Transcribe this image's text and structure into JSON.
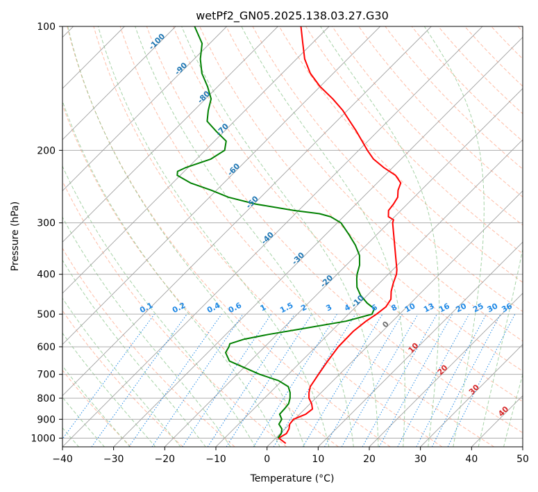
{
  "chart_data": {
    "type": "line",
    "title": "wetPf2_GN05.2025.138.03.27.G30",
    "xlabel": "Temperature (°C)",
    "ylabel": "Pressure (hPa)",
    "xlim": [
      -40,
      50
    ],
    "ylim": [
      1050,
      100
    ],
    "y_scale": "log",
    "skew_deg": 45,
    "x_ticks": [
      "−40",
      "−30",
      "−20",
      "−10",
      "0",
      "10",
      "20",
      "30",
      "40",
      "50"
    ],
    "y_ticks": [
      "100",
      "200",
      "300",
      "400",
      "500",
      "600",
      "700",
      "800",
      "900",
      "1000"
    ],
    "grid": true,
    "colors": {
      "temperature": "#ff0000",
      "dewpoint": "#008000",
      "dry_adiabat": "#ff9f7f",
      "moist_adiabat": "#7fbf7f",
      "mixing_ratio": "#1e88e5",
      "isotherm": "#a0a0a0",
      "dry_label": "#d62728",
      "moist_label": "#1f77b4",
      "mixing_label": "#1e88e5"
    },
    "series": [
      {
        "key": "temperature",
        "color": "#ff0000",
        "points": [
          [
            1030,
            3.0
          ],
          [
            1000,
            0.6
          ],
          [
            975,
            1.2
          ],
          [
            950,
            0.8
          ],
          [
            925,
            0.0
          ],
          [
            900,
            -0.2
          ],
          [
            875,
            1.2
          ],
          [
            850,
            1.5
          ],
          [
            825,
            0.3
          ],
          [
            800,
            -1.3
          ],
          [
            775,
            -2.4
          ],
          [
            750,
            -3.3
          ],
          [
            700,
            -4.1
          ],
          [
            650,
            -4.9
          ],
          [
            600,
            -5.6
          ],
          [
            550,
            -5.7
          ],
          [
            520,
            -5.2
          ],
          [
            500,
            -4.5
          ],
          [
            480,
            -4.1
          ],
          [
            460,
            -4.6
          ],
          [
            440,
            -6.1
          ],
          [
            420,
            -7.3
          ],
          [
            400,
            -8.4
          ],
          [
            390,
            -9.2
          ],
          [
            300,
            -19.2
          ],
          [
            295,
            -19.6
          ],
          [
            290,
            -21.2
          ],
          [
            280,
            -22.4
          ],
          [
            270,
            -22.7
          ],
          [
            260,
            -23.2
          ],
          [
            250,
            -24.5
          ],
          [
            240,
            -25.4
          ],
          [
            230,
            -27.9
          ],
          [
            220,
            -31.8
          ],
          [
            210,
            -35.4
          ],
          [
            200,
            -38.3
          ],
          [
            180,
            -44.1
          ],
          [
            160,
            -50.9
          ],
          [
            150,
            -55.1
          ],
          [
            140,
            -60.0
          ],
          [
            130,
            -64.5
          ],
          [
            120,
            -68.4
          ],
          [
            110,
            -71.8
          ],
          [
            100,
            -75.5
          ]
        ]
      },
      {
        "key": "dewpoint",
        "color": "#008000",
        "points": [
          [
            1000,
            0.4
          ],
          [
            975,
            0.2
          ],
          [
            950,
            -0.6
          ],
          [
            925,
            -2.1
          ],
          [
            900,
            -2.5
          ],
          [
            875,
            -3.9
          ],
          [
            850,
            -4.0
          ],
          [
            825,
            -4.2
          ],
          [
            800,
            -5.0
          ],
          [
            775,
            -6.1
          ],
          [
            750,
            -7.6
          ],
          [
            725,
            -10.7
          ],
          [
            700,
            -15.6
          ],
          [
            650,
            -24.1
          ],
          [
            620,
            -26.5
          ],
          [
            600,
            -27.0
          ],
          [
            590,
            -27.4
          ],
          [
            575,
            -25.5
          ],
          [
            560,
            -21.7
          ],
          [
            540,
            -15.4
          ],
          [
            520,
            -9.1
          ],
          [
            500,
            -5.4
          ],
          [
            485,
            -6.0
          ],
          [
            470,
            -8.5
          ],
          [
            450,
            -11.3
          ],
          [
            430,
            -13.6
          ],
          [
            410,
            -15.3
          ],
          [
            400,
            -16.1
          ],
          [
            380,
            -17.4
          ],
          [
            360,
            -19.3
          ],
          [
            340,
            -22.1
          ],
          [
            320,
            -25.5
          ],
          [
            300,
            -29.3
          ],
          [
            290,
            -32.5
          ],
          [
            285,
            -35.3
          ],
          [
            280,
            -40.9
          ],
          [
            270,
            -49.7
          ],
          [
            260,
            -56.3
          ],
          [
            250,
            -61.0
          ],
          [
            240,
            -66.5
          ],
          [
            230,
            -70.6
          ],
          [
            225,
            -71.3
          ],
          [
            220,
            -70.4
          ],
          [
            210,
            -67.2
          ],
          [
            200,
            -66.2
          ],
          [
            190,
            -67.7
          ],
          [
            180,
            -71.5
          ],
          [
            170,
            -75.3
          ],
          [
            160,
            -77.2
          ],
          [
            150,
            -78.9
          ],
          [
            140,
            -82.0
          ],
          [
            130,
            -85.7
          ],
          [
            120,
            -88.8
          ],
          [
            110,
            -91.5
          ],
          [
            100,
            -96.3
          ]
        ]
      }
    ],
    "dry_adiabat_labels": [
      "0",
      "10",
      "20",
      "30",
      "40"
    ],
    "moist_adiabat_labels": [
      "-100",
      "-90",
      "-80",
      "-70",
      "-60",
      "-50",
      "-40",
      "-30",
      "-20",
      "-10"
    ],
    "mixing_ratio_labels": [
      "0.1",
      "0.2",
      "0.4",
      "0.6",
      "1",
      "1.5",
      "2",
      "3",
      "4",
      "6",
      "8",
      "10",
      "13",
      "16",
      "20",
      "25",
      "30",
      "36"
    ]
  }
}
